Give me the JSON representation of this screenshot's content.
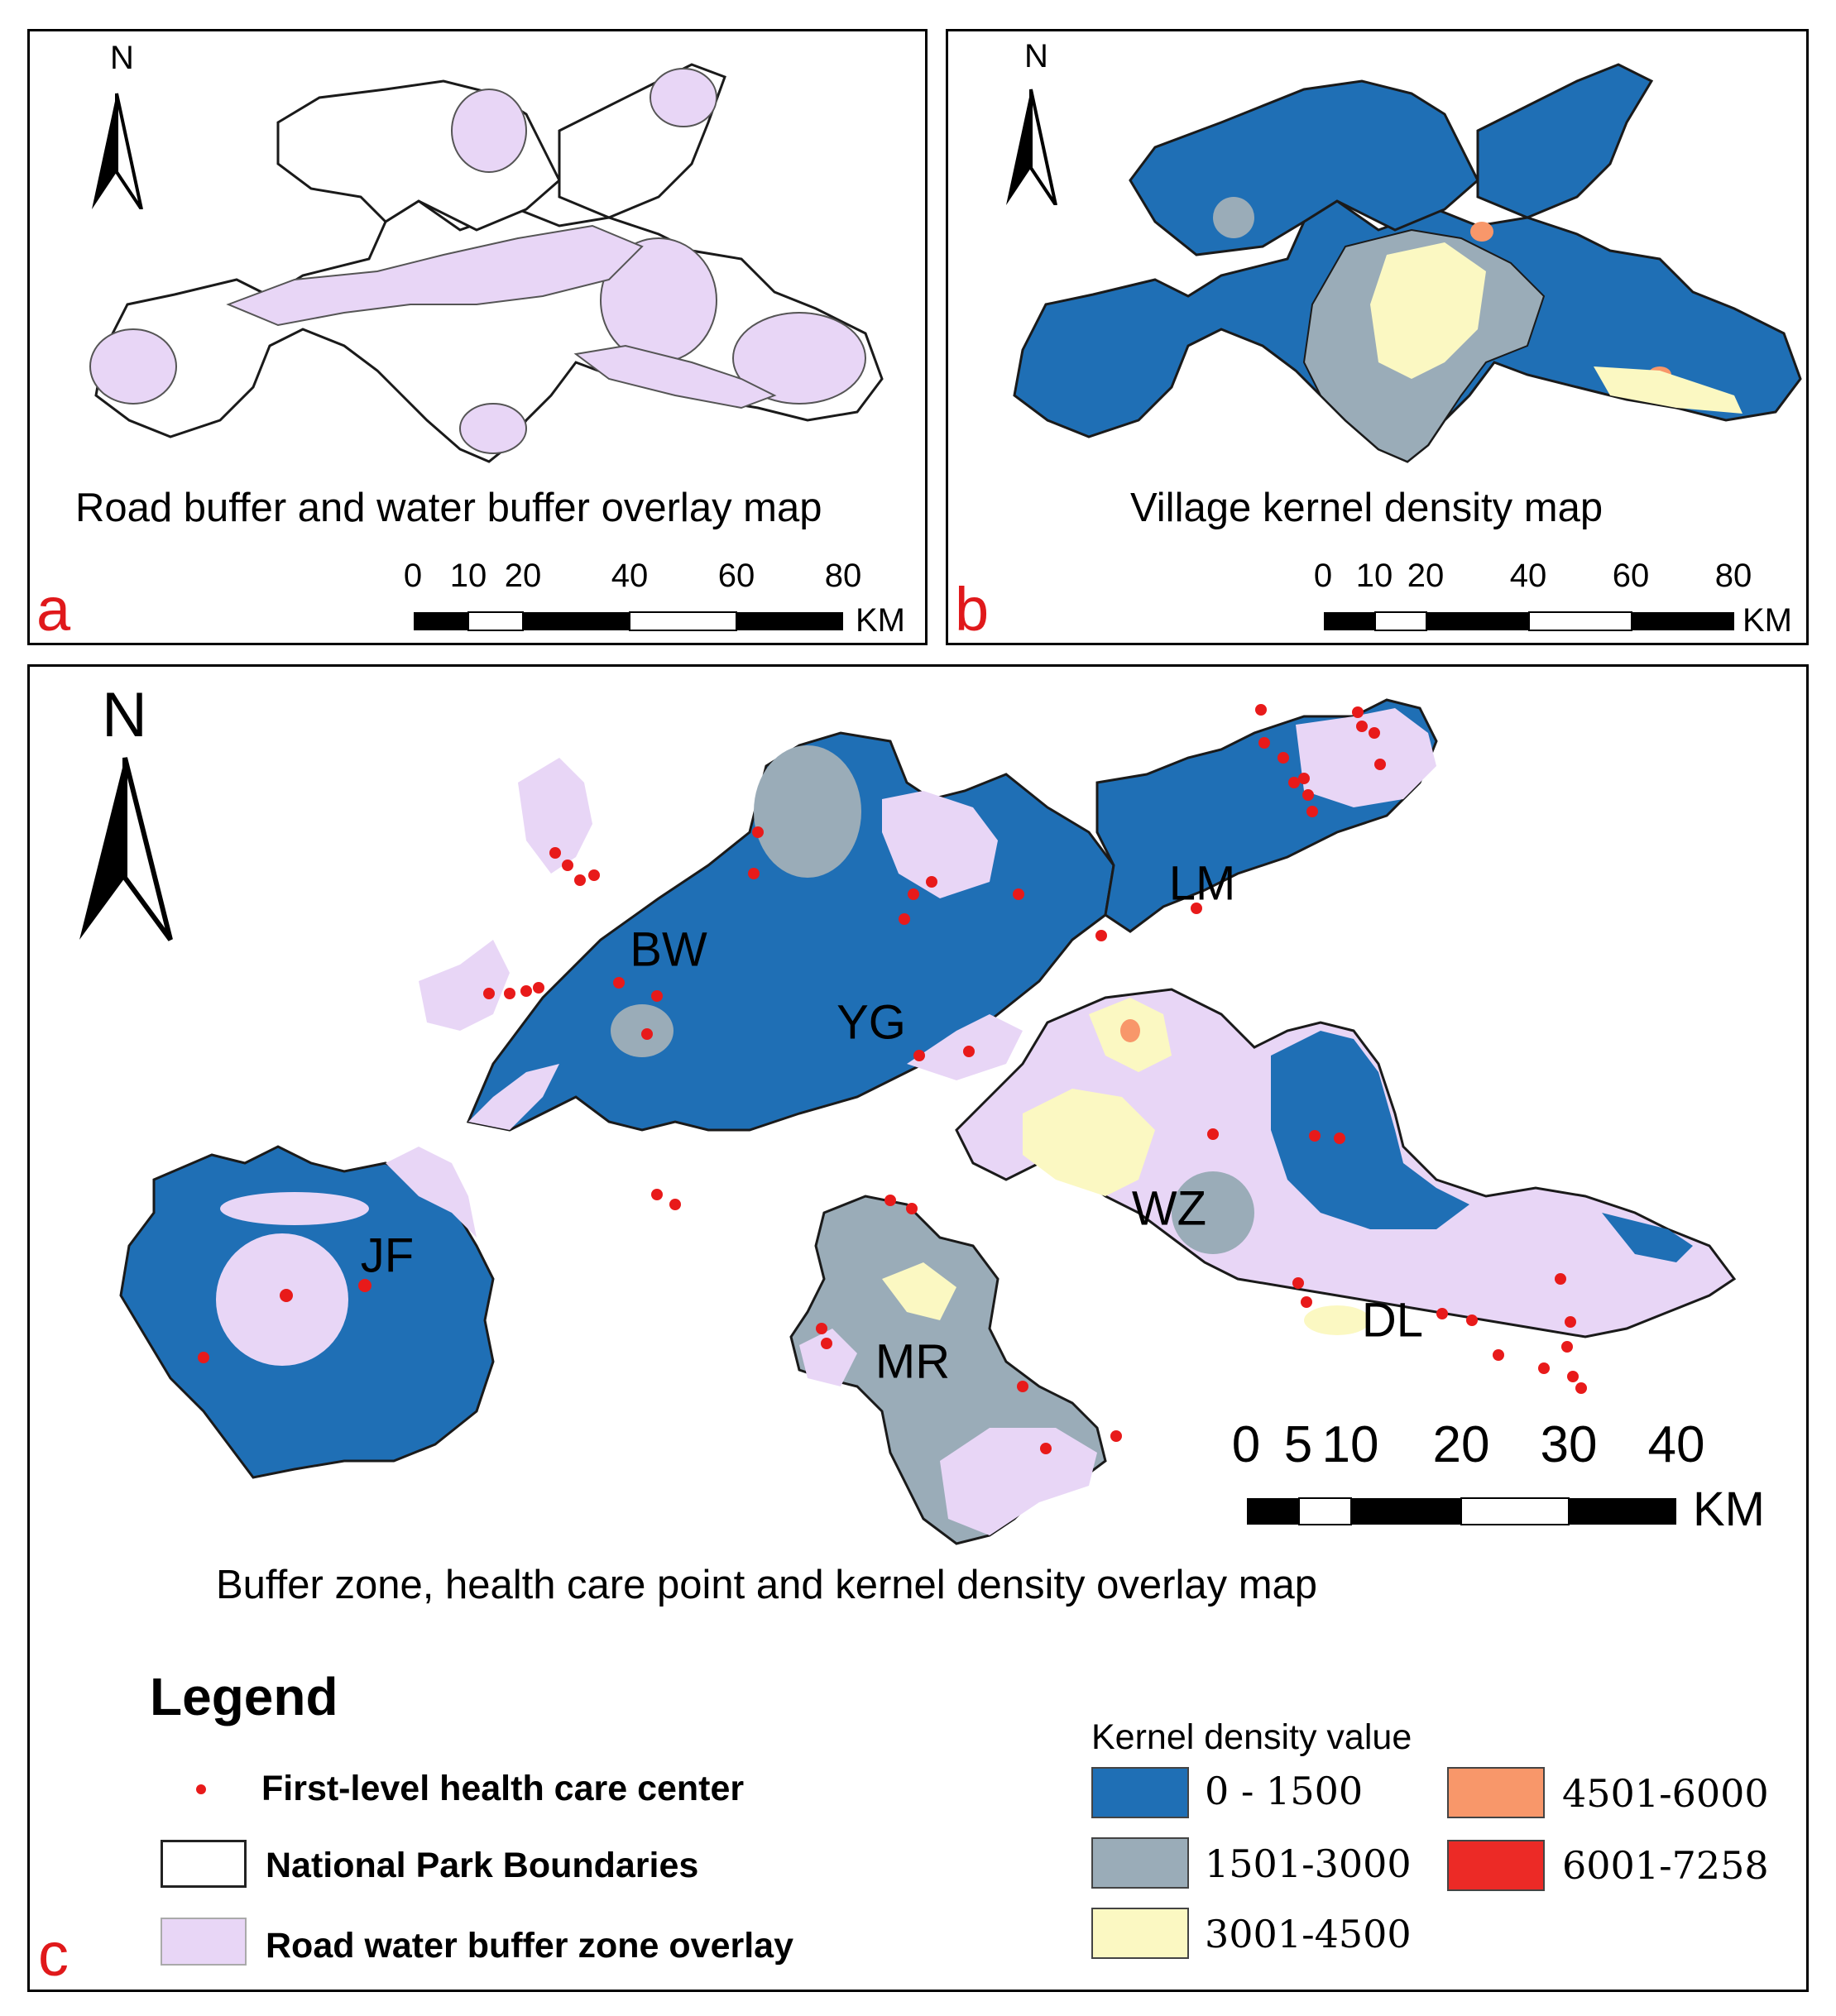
{
  "colors": {
    "density_0_1500": "#1f6fb5",
    "density_1501_3000": "#9aacb8",
    "density_3001_4500": "#fbf8c2",
    "density_4501_6000": "#f8976a",
    "density_6001_7258": "#ec2a26",
    "buffer": "#e8d6f6",
    "boundary": "#1a1a1a",
    "health_point": "#e81a1a",
    "panel_letter": "#e0191b"
  },
  "panel_a": {
    "letter": "a",
    "north": "N",
    "title": "Road buffer and water buffer overlay map",
    "scale": {
      "ticks": [
        "0",
        "10",
        "20",
        "40",
        "60",
        "80"
      ],
      "unit": "KM"
    }
  },
  "panel_b": {
    "letter": "b",
    "north": "N",
    "title": "Village kernel density map",
    "scale": {
      "ticks": [
        "0",
        "10",
        "20",
        "40",
        "60",
        "80"
      ],
      "unit": "KM"
    }
  },
  "panel_c": {
    "letter": "c",
    "north": "N",
    "title": "Buffer zone, health care point and kernel density overlay map",
    "scale": {
      "ticks": [
        "0",
        "5",
        "10",
        "20",
        "30",
        "40"
      ],
      "unit": "KM"
    },
    "regions": [
      "BW",
      "YG",
      "LM",
      "JF",
      "WZ",
      "MR",
      "DL"
    ]
  },
  "legend": {
    "title": "Legend",
    "items": [
      {
        "label": "First-level health care center",
        "icon": "red-dot"
      },
      {
        "label": "National Park Boundaries",
        "icon": "outline-box"
      },
      {
        "label": "Road water buffer zone overlay",
        "icon": "lilac-box"
      }
    ]
  },
  "kernel_density": {
    "title": "Kernel density value",
    "classes": [
      {
        "label": "0 - 1500",
        "color": "#1f6fb5"
      },
      {
        "label": "1501-3000",
        "color": "#9aacb8"
      },
      {
        "label": "3001-4500",
        "color": "#fbf8c2"
      },
      {
        "label": "4501-6000",
        "color": "#f8976a"
      },
      {
        "label": "6001-7258",
        "color": "#ec2a26"
      }
    ]
  }
}
